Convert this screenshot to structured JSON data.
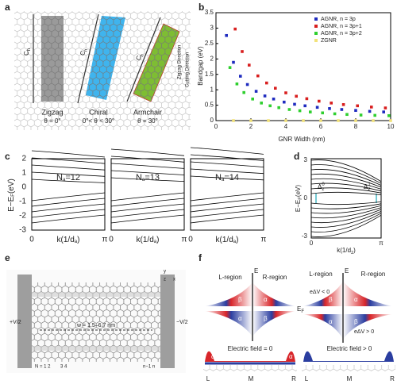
{
  "panel_labels": [
    "a",
    "b",
    "c",
    "d",
    "e",
    "f"
  ],
  "panel_a": {
    "ch": "C",
    "ch_sub": "h",
    "ribbons": [
      {
        "name": "Zigzag",
        "angle": "θ = 0°"
      },
      {
        "name": "Chiral",
        "angle": "0°< θ < 30°"
      },
      {
        "name": "Armchair",
        "angle": "θ = 30°"
      }
    ],
    "zigzag_direction": "Zigzag Direction",
    "cutting_direction": "Cutting Direction"
  },
  "chart_data": {
    "type": "scatter",
    "x_label": "GNR Width (nm)",
    "y_label": "Bandgap (eV)",
    "xlim": [
      0,
      10
    ],
    "xticks": [
      0,
      2,
      4,
      6,
      8,
      10
    ],
    "ylim": [
      0,
      3.5
    ],
    "yticks": [
      0,
      0.5,
      1,
      1.5,
      2,
      2.5,
      3,
      3.5
    ],
    "legend": "top-right",
    "series": [
      {
        "name": "AGNR, n = 3p",
        "color": "#1f2bbf",
        "x": [
          0.6,
          1.0,
          1.4,
          1.8,
          2.3,
          2.8,
          3.3,
          3.9,
          4.5,
          5.1,
          5.8,
          6.5,
          7.2,
          8.0,
          8.8,
          9.6
        ],
        "values": [
          2.76,
          1.89,
          1.44,
          1.17,
          0.95,
          0.8,
          0.7,
          0.6,
          0.53,
          0.48,
          0.43,
          0.39,
          0.36,
          0.33,
          0.3,
          0.28
        ]
      },
      {
        "name": "AGNR, n = 3p+1",
        "color": "#d81e1e",
        "x": [
          1.1,
          1.5,
          1.9,
          2.4,
          2.9,
          3.4,
          4.0,
          4.6,
          5.2,
          5.9,
          6.6,
          7.3,
          8.1,
          8.9,
          9.7
        ],
        "values": [
          2.97,
          2.24,
          1.8,
          1.45,
          1.22,
          1.05,
          0.9,
          0.79,
          0.71,
          0.63,
          0.57,
          0.52,
          0.48,
          0.44,
          0.41
        ]
      },
      {
        "name": "AGNR, n = 3p+2",
        "color": "#2fcf2f",
        "x": [
          0.8,
          1.2,
          1.6,
          2.1,
          2.6,
          3.1,
          3.6,
          4.2,
          4.8,
          5.4,
          6.1,
          6.8,
          7.5,
          8.3,
          9.1,
          9.9
        ],
        "values": [
          1.72,
          1.19,
          0.91,
          0.7,
          0.57,
          0.48,
          0.42,
          0.36,
          0.32,
          0.28,
          0.25,
          0.22,
          0.2,
          0.18,
          0.17,
          0.16
        ]
      },
      {
        "name": "ZGNR",
        "color": "#f2e27a",
        "x": [
          1,
          2,
          3,
          4,
          5,
          6,
          7,
          8,
          9,
          10
        ],
        "values": [
          0,
          0,
          0,
          0,
          0,
          0,
          0,
          0,
          0,
          0
        ]
      }
    ]
  },
  "panel_c": {
    "y_label": [
      "E",
      "−E",
      "F",
      "(eV)"
    ],
    "yticks": [
      "2",
      "1",
      "0",
      "-1",
      "-2",
      "-3"
    ],
    "x_start": "0",
    "x_end": "π",
    "x_label": [
      "k(1/d",
      "a",
      ")"
    ],
    "labels": [
      [
        "N",
        "a",
        "=12"
      ],
      [
        "N",
        "a",
        "=13"
      ],
      [
        "N",
        "a",
        "=14"
      ]
    ]
  },
  "panel_d": {
    "y_label": [
      "E−E",
      "F",
      "(eV)"
    ],
    "yticks": [
      "3",
      "0",
      "-3"
    ],
    "x_start": "0",
    "x_end": "π",
    "x_label": [
      "k(1/d",
      "z",
      ")"
    ],
    "gap0": [
      "Δ",
      "z",
      "0"
    ],
    "gap1": [
      "Δ",
      "z",
      "1"
    ]
  },
  "panel_e": {
    "width": "w = 1.5–6.7 nm",
    "left_v": "+V/2",
    "right_v": "−V/2",
    "sites_left": "N = 1  2",
    "sites_mid": "3  4",
    "sites_right": "n−1  n",
    "axes": [
      "y",
      "x",
      "z"
    ]
  },
  "panel_f": {
    "energy": "E",
    "l_region": "L-region",
    "r_region": "R-region",
    "alpha": "α",
    "beta": "β",
    "fermi": [
      "E",
      "F"
    ],
    "bias_neg": "eΔV < 0",
    "bias_pos": "eΔV > 0",
    "field_zero": "Electric field = 0",
    "field_pos": "Electric field > 0",
    "positions": [
      "L",
      "M",
      "R"
    ]
  }
}
